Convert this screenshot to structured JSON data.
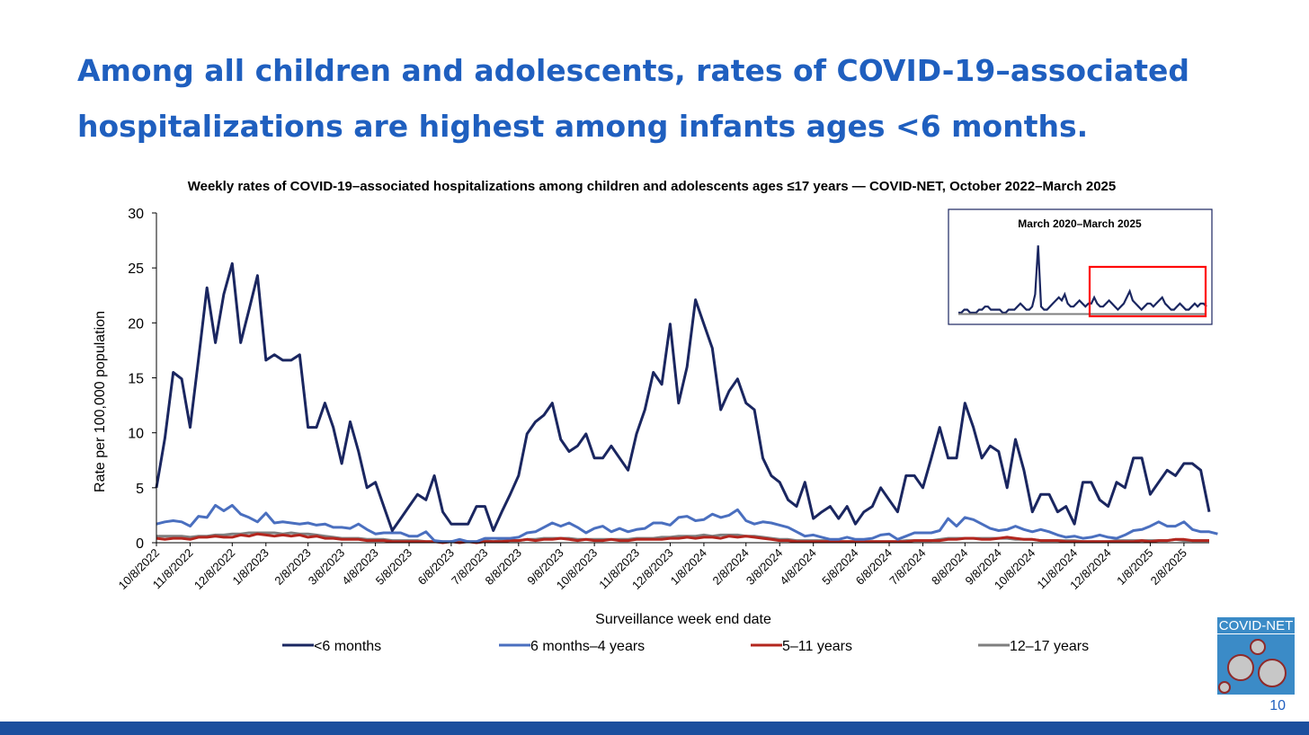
{
  "slide": {
    "title": "Among all children and adolescents, rates of COVID-19–associated hospitalizations are highest among infants ages <6 months.",
    "page_number": "10",
    "logo_text": "COVID-NET"
  },
  "colors": {
    "title": "#1f5fbf",
    "lt6m": "#1a2660",
    "m6y4": "#4a6fbf",
    "y5_11": "#b3261e",
    "y12_17": "#7f7f7f",
    "inset_highlight": "#ff0000",
    "footer": "#1b4f9e"
  },
  "chart_data": {
    "type": "line",
    "title": "Weekly rates of COVID-19–associated hospitalizations among children and adolescents ages ≤17 years — COVID-NET, October 2022–March 2025",
    "xlabel": "Surveillance week end date",
    "ylabel": "Rate per 100,000 population",
    "ylim": [
      0,
      30
    ],
    "yticks": [
      0,
      5,
      10,
      15,
      20,
      25,
      30
    ],
    "x_start": "10/8/2022",
    "x_interval": "weekly",
    "xtick_labels": [
      "10/8/2022",
      "11/8/2022",
      "12/8/2022",
      "1/8/2023",
      "2/8/2023",
      "3/8/2023",
      "4/8/2023",
      "5/8/2023",
      "6/8/2023",
      "7/8/2023",
      "8/8/2023",
      "9/8/2023",
      "10/8/2023",
      "11/8/2023",
      "12/8/2023",
      "1/8/2024",
      "2/8/2024",
      "3/8/2024",
      "4/8/2024",
      "5/8/2024",
      "6/8/2024",
      "7/8/2024",
      "8/8/2024",
      "9/8/2024",
      "10/8/2024",
      "11/8/2024",
      "12/8/2024",
      "1/8/2025",
      "2/8/2025"
    ],
    "grid": false,
    "legend_position": "bottom",
    "series": [
      {
        "name": "<6 months",
        "color_key": "lt6m",
        "values": [
          5.0,
          9.5,
          15.5,
          14.9,
          10.5,
          16.7,
          23.2,
          18.2,
          22.6,
          25.4,
          18.2,
          21.2,
          24.3,
          16.6,
          17.1,
          16.6,
          16.6,
          17.1,
          10.5,
          10.5,
          12.7,
          10.5,
          7.2,
          11.0,
          8.3,
          5.0,
          5.5,
          3.3,
          1.1,
          2.2,
          3.3,
          4.4,
          3.9,
          6.1,
          2.8,
          1.7,
          1.7,
          1.7,
          3.3,
          3.3,
          1.1,
          2.8,
          4.4,
          6.1,
          9.9,
          11.0,
          11.6,
          12.7,
          9.4,
          8.3,
          8.8,
          9.9,
          7.7,
          7.7,
          8.8,
          7.7,
          6.6,
          9.9,
          12.1,
          15.5,
          14.4,
          19.9,
          12.7,
          16.0,
          22.1,
          19.9,
          17.7,
          12.1,
          13.8,
          14.9,
          12.7,
          12.1,
          7.7,
          6.1,
          5.5,
          3.9,
          3.3,
          5.5,
          2.2,
          2.8,
          3.3,
          2.2,
          3.3,
          1.7,
          2.8,
          3.3,
          5.0,
          3.9,
          2.8,
          6.1,
          6.1,
          5.0,
          7.7,
          10.5,
          7.7,
          7.7,
          12.7,
          10.5,
          7.7,
          8.8,
          8.3,
          5.0,
          9.4,
          6.6,
          2.8,
          4.4,
          4.4,
          2.8,
          3.3,
          1.7,
          5.5,
          5.5,
          3.9,
          3.3,
          5.5,
          5.0,
          7.7,
          7.7,
          4.4,
          5.5,
          6.6,
          6.1,
          7.2,
          7.2,
          6.6,
          2.8
        ]
      },
      {
        "name": "6 months–4 years",
        "color_key": "m6y4",
        "values": [
          1.7,
          1.9,
          2.0,
          1.9,
          1.5,
          2.4,
          2.3,
          3.4,
          2.9,
          3.4,
          2.6,
          2.3,
          1.9,
          2.7,
          1.8,
          1.9,
          1.8,
          1.7,
          1.8,
          1.6,
          1.7,
          1.4,
          1.4,
          1.3,
          1.7,
          1.2,
          0.8,
          0.9,
          0.9,
          0.9,
          0.6,
          0.6,
          1.0,
          0.2,
          0.1,
          0.1,
          0.3,
          0.1,
          0.1,
          0.4,
          0.4,
          0.4,
          0.4,
          0.5,
          0.9,
          1.0,
          1.4,
          1.8,
          1.5,
          1.8,
          1.4,
          0.9,
          1.3,
          1.5,
          1.0,
          1.3,
          1.0,
          1.2,
          1.3,
          1.8,
          1.8,
          1.6,
          2.3,
          2.4,
          2.0,
          2.1,
          2.6,
          2.3,
          2.5,
          3.0,
          2.0,
          1.7,
          1.9,
          1.8,
          1.6,
          1.4,
          1.0,
          0.6,
          0.7,
          0.5,
          0.3,
          0.3,
          0.5,
          0.3,
          0.3,
          0.4,
          0.7,
          0.8,
          0.3,
          0.6,
          0.9,
          0.9,
          0.9,
          1.1,
          2.2,
          1.5,
          2.3,
          2.1,
          1.7,
          1.3,
          1.1,
          1.2,
          1.5,
          1.2,
          1.0,
          1.2,
          1.0,
          0.7,
          0.5,
          0.6,
          0.4,
          0.5,
          0.7,
          0.5,
          0.4,
          0.7,
          1.1,
          1.2,
          1.5,
          1.9,
          1.5,
          1.5,
          1.9,
          1.2,
          1.0,
          1.0,
          0.8
        ]
      },
      {
        "name": "5–11 years",
        "color_key": "y5_11",
        "values": [
          0.4,
          0.3,
          0.4,
          0.4,
          0.3,
          0.5,
          0.5,
          0.6,
          0.5,
          0.5,
          0.7,
          0.6,
          0.8,
          0.7,
          0.6,
          0.7,
          0.6,
          0.7,
          0.5,
          0.6,
          0.4,
          0.4,
          0.3,
          0.3,
          0.3,
          0.2,
          0.2,
          0.2,
          0.1,
          0.1,
          0.1,
          0.1,
          0.1,
          0.1,
          0.0,
          0.1,
          0.0,
          0.1,
          0.0,
          0.1,
          0.1,
          0.1,
          0.2,
          0.2,
          0.3,
          0.2,
          0.3,
          0.3,
          0.4,
          0.3,
          0.2,
          0.3,
          0.2,
          0.2,
          0.3,
          0.2,
          0.2,
          0.3,
          0.3,
          0.3,
          0.3,
          0.4,
          0.4,
          0.5,
          0.4,
          0.5,
          0.5,
          0.4,
          0.6,
          0.5,
          0.6,
          0.5,
          0.4,
          0.3,
          0.2,
          0.2,
          0.1,
          0.1,
          0.1,
          0.1,
          0.1,
          0.1,
          0.1,
          0.1,
          0.1,
          0.1,
          0.1,
          0.1,
          0.1,
          0.1,
          0.2,
          0.2,
          0.2,
          0.2,
          0.3,
          0.3,
          0.4,
          0.4,
          0.3,
          0.3,
          0.4,
          0.5,
          0.4,
          0.3,
          0.3,
          0.2,
          0.2,
          0.2,
          0.1,
          0.1,
          0.1,
          0.1,
          0.1,
          0.1,
          0.1,
          0.1,
          0.1,
          0.2,
          0.1,
          0.2,
          0.2,
          0.3,
          0.3,
          0.2,
          0.2,
          0.2
        ]
      },
      {
        "name": "12–17 years",
        "color_key": "y12_17",
        "values": [
          0.6,
          0.6,
          0.6,
          0.6,
          0.5,
          0.6,
          0.6,
          0.7,
          0.7,
          0.8,
          0.8,
          0.9,
          0.9,
          0.9,
          0.9,
          0.8,
          0.9,
          0.8,
          0.8,
          0.7,
          0.6,
          0.5,
          0.4,
          0.4,
          0.4,
          0.3,
          0.3,
          0.3,
          0.2,
          0.2,
          0.2,
          0.2,
          0.1,
          0.1,
          0.1,
          0.1,
          0.1,
          0.1,
          0.1,
          0.2,
          0.1,
          0.2,
          0.2,
          0.2,
          0.3,
          0.3,
          0.4,
          0.4,
          0.4,
          0.4,
          0.3,
          0.3,
          0.3,
          0.3,
          0.3,
          0.3,
          0.3,
          0.4,
          0.4,
          0.4,
          0.5,
          0.5,
          0.6,
          0.6,
          0.6,
          0.7,
          0.6,
          0.7,
          0.7,
          0.7,
          0.6,
          0.6,
          0.5,
          0.4,
          0.3,
          0.3,
          0.2,
          0.2,
          0.2,
          0.2,
          0.2,
          0.1,
          0.1,
          0.1,
          0.1,
          0.1,
          0.1,
          0.1,
          0.1,
          0.2,
          0.2,
          0.2,
          0.2,
          0.3,
          0.4,
          0.4,
          0.4,
          0.4,
          0.4,
          0.4,
          0.4,
          0.4,
          0.3,
          0.3,
          0.3,
          0.2,
          0.2,
          0.2,
          0.2,
          0.2,
          0.1,
          0.1,
          0.1,
          0.1,
          0.2,
          0.2,
          0.2,
          0.2,
          0.2,
          0.2,
          0.2,
          0.3,
          0.2,
          0.2,
          0.2,
          0.2
        ]
      }
    ],
    "inset": {
      "title": "March 2020–March 2025",
      "highlight": "October 2022–March 2025"
    }
  }
}
